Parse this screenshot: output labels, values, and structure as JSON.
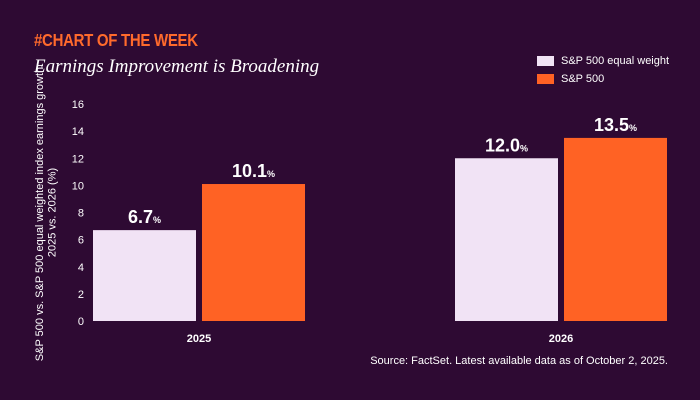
{
  "header": {
    "kicker": "#CHART OF THE WEEK",
    "title": "Earnings Improvement is Broadening"
  },
  "legend": {
    "items": [
      {
        "label": "S&P 500 equal weight",
        "color": "#f1e3f5"
      },
      {
        "label": "S&P 500",
        "color": "#ff6224"
      }
    ]
  },
  "footer": {
    "source": "Source: FactSet. Latest available data as of October 2, 2025."
  },
  "chart_data": {
    "type": "bar",
    "title": "Earnings Improvement is Broadening",
    "xlabel": "",
    "ylabel": "S&P 500 vs. S&P 500 equal weighted index earnings growth: 2025 vs. 2026 (%)",
    "ylim": [
      0,
      16
    ],
    "yticks": [
      0,
      2,
      4,
      6,
      8,
      10,
      12,
      14,
      16
    ],
    "categories": [
      "2025",
      "2026"
    ],
    "series": [
      {
        "name": "S&P 500 equal weight",
        "values": [
          6.7,
          12.0
        ],
        "labels": [
          "6.7",
          "12.0"
        ],
        "color": "#f1e3f5"
      },
      {
        "name": "S&P 500",
        "values": [
          10.1,
          13.5
        ],
        "labels": [
          "10.1",
          "13.5"
        ],
        "color": "#ff6224"
      }
    ],
    "label_suffix": "%",
    "legend_position": "top-right",
    "grid": false
  }
}
